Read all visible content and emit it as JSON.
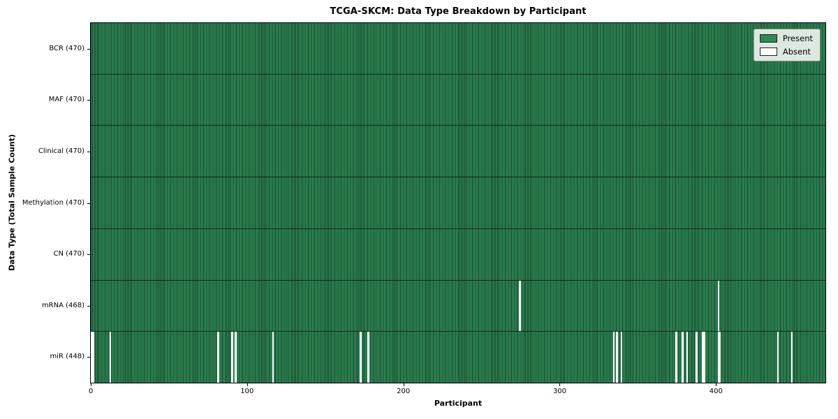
{
  "chart_data": {
    "type": "heatmap",
    "title": "TCGA-SKCM: Data Type Breakdown by Participant",
    "xlabel": "Participant",
    "ylabel": "Data Type (Total Sample Count)",
    "x_range": [
      0,
      470
    ],
    "x_ticks": [
      0,
      100,
      200,
      300,
      400
    ],
    "n_participants": 470,
    "grid": false,
    "legend_position": "upper right",
    "legend_items": [
      {
        "label": "Present",
        "color": "#2e8b57"
      },
      {
        "label": "Absent",
        "color": "#ffffff"
      }
    ],
    "colors": {
      "present_fill": "#2e8b57",
      "bar_edge": "#17402a",
      "absent_fill": "#ffffff",
      "row_divider": "#10281a"
    },
    "rows": [
      {
        "label": "BCR (470)",
        "data_type": "BCR",
        "present_count": 470,
        "absent_participants": []
      },
      {
        "label": "MAF (470)",
        "data_type": "MAF",
        "present_count": 470,
        "absent_participants": []
      },
      {
        "label": "Clinical (470)",
        "data_type": "Clinical",
        "present_count": 470,
        "absent_participants": []
      },
      {
        "label": "Methylation (470)",
        "data_type": "Methylation",
        "present_count": 470,
        "absent_participants": []
      },
      {
        "label": "CN (470)",
        "data_type": "CN",
        "present_count": 470,
        "absent_participants": []
      },
      {
        "label": "mRNA (468)",
        "data_type": "mRNA",
        "present_count": 468,
        "absent_participants": [
          274,
          401
        ]
      },
      {
        "label": "miR (448)",
        "data_type": "miR",
        "present_count": 448,
        "absent_participants": [
          0,
          1,
          12,
          81,
          90,
          92,
          116,
          172,
          177,
          334,
          336,
          339,
          374,
          378,
          381,
          387,
          391,
          392,
          401,
          402,
          439,
          448
        ]
      }
    ]
  }
}
